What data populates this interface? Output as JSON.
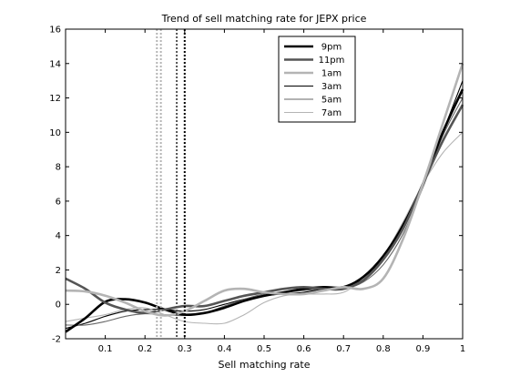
{
  "chart_data": {
    "type": "line",
    "title": "Trend of sell matching rate for JEPX price",
    "xlabel": "Sell matching rate",
    "ylabel": "",
    "xlim": [
      0,
      1
    ],
    "ylim": [
      -2,
      16
    ],
    "x_ticks": [
      0.1,
      0.2,
      0.3,
      0.4,
      0.5,
      0.6,
      0.7,
      0.8,
      0.9,
      1
    ],
    "x_tick_labels": [
      "0.1",
      "0.2",
      "0.3",
      "0.4",
      "0.5",
      "0.6",
      "0.7",
      "0.8",
      "0.9",
      "1"
    ],
    "y_ticks": [
      -2,
      0,
      2,
      4,
      6,
      8,
      10,
      12,
      14,
      16
    ],
    "y_tick_labels": [
      "-2",
      "0",
      "2",
      "4",
      "6",
      "8",
      "10",
      "12",
      "14",
      "16"
    ],
    "grid": false,
    "legend_position": "top-right",
    "x": [
      0.0,
      0.05,
      0.1,
      0.15,
      0.2,
      0.25,
      0.3,
      0.35,
      0.4,
      0.45,
      0.5,
      0.55,
      0.6,
      0.65,
      0.7,
      0.75,
      0.8,
      0.85,
      0.9,
      0.95,
      1.0
    ],
    "series": [
      {
        "name": "9pm",
        "color": "#000000",
        "style": "thick",
        "values": [
          -1.6,
          -0.8,
          0.15,
          0.3,
          0.1,
          -0.3,
          -0.6,
          -0.5,
          -0.2,
          0.2,
          0.5,
          0.7,
          0.9,
          1.0,
          1.0,
          1.6,
          2.8,
          4.6,
          7.0,
          10.0,
          12.5
        ]
      },
      {
        "name": "11pm",
        "color": "#555555",
        "style": "thick",
        "values": [
          1.5,
          0.9,
          0.1,
          -0.3,
          -0.5,
          -0.3,
          -0.1,
          -0.1,
          0.2,
          0.5,
          0.7,
          0.9,
          1.0,
          0.9,
          0.9,
          1.4,
          2.6,
          4.4,
          7.0,
          9.5,
          11.6
        ]
      },
      {
        "name": "1am",
        "color": "#b4b4b4",
        "style": "thick",
        "values": [
          0.8,
          0.75,
          0.5,
          0.1,
          -0.4,
          -0.65,
          -0.4,
          0.2,
          0.8,
          0.9,
          0.7,
          0.6,
          0.6,
          0.8,
          1.0,
          0.9,
          1.5,
          3.8,
          7.0,
          10.5,
          14.0
        ]
      },
      {
        "name": "3am",
        "color": "#000000",
        "style": "thin",
        "values": [
          -1.4,
          -1.1,
          -0.7,
          -0.4,
          -0.3,
          -0.3,
          -0.4,
          -0.3,
          0.0,
          0.3,
          0.5,
          0.6,
          0.7,
          0.9,
          1.0,
          1.5,
          2.6,
          4.4,
          7.0,
          10.0,
          13.0
        ]
      },
      {
        "name": "5am",
        "color": "#666666",
        "style": "thin",
        "values": [
          -1.2,
          -1.2,
          -1.0,
          -0.7,
          -0.55,
          -0.6,
          -0.65,
          -0.5,
          -0.1,
          0.3,
          0.6,
          0.7,
          0.8,
          0.9,
          0.9,
          1.3,
          2.3,
          4.1,
          6.8,
          9.8,
          12.0
        ]
      },
      {
        "name": "7am",
        "color": "#b4b4b4",
        "style": "thin",
        "values": [
          -1.0,
          -0.8,
          -0.6,
          -0.3,
          -0.2,
          -0.6,
          -1.0,
          -1.1,
          -1.1,
          -0.6,
          0.1,
          0.5,
          0.6,
          0.6,
          0.7,
          1.5,
          2.8,
          4.8,
          7.0,
          8.8,
          10.0
        ]
      }
    ],
    "vertical_lines": [
      {
        "x": 0.23,
        "color": "#b4b4b4"
      },
      {
        "x": 0.24,
        "color": "#b4b4b4"
      },
      {
        "x": 0.28,
        "color": "#555555"
      },
      {
        "x": 0.3,
        "color": "#000000"
      }
    ]
  }
}
